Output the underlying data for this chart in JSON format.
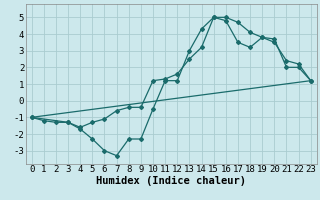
{
  "xlabel": "Humidex (Indice chaleur)",
  "xlim": [
    -0.5,
    23.5
  ],
  "ylim": [
    -3.8,
    5.8
  ],
  "xticks": [
    0,
    1,
    2,
    3,
    4,
    5,
    6,
    7,
    8,
    9,
    10,
    11,
    12,
    13,
    14,
    15,
    16,
    17,
    18,
    19,
    20,
    21,
    22,
    23
  ],
  "yticks": [
    -3,
    -2,
    -1,
    0,
    1,
    2,
    3,
    4,
    5
  ],
  "bg_color": "#cce8ec",
  "grid_color": "#aaccd0",
  "line_color": "#1a6b6b",
  "line1_x": [
    0,
    1,
    2,
    3,
    4,
    5,
    6,
    7,
    8,
    9,
    10,
    11,
    12,
    13,
    14,
    15,
    16,
    17,
    18,
    19,
    20,
    21,
    22,
    23
  ],
  "line1_y": [
    -1.0,
    -1.2,
    -1.3,
    -1.3,
    -1.7,
    -2.3,
    -3.0,
    -3.3,
    -2.3,
    -2.3,
    -0.5,
    1.2,
    1.2,
    3.0,
    4.3,
    5.0,
    5.0,
    4.7,
    4.1,
    3.8,
    3.7,
    2.0,
    2.0,
    1.2
  ],
  "line2_x": [
    0,
    3,
    4,
    5,
    6,
    7,
    8,
    9,
    10,
    11,
    12,
    13,
    14,
    15,
    16,
    17,
    18,
    19,
    20,
    21,
    22,
    23
  ],
  "line2_y": [
    -1.0,
    -1.3,
    -1.6,
    -1.3,
    -1.1,
    -0.6,
    -0.4,
    -0.4,
    1.2,
    1.3,
    1.6,
    2.5,
    3.2,
    5.0,
    4.8,
    3.5,
    3.2,
    3.8,
    3.5,
    2.4,
    2.2,
    1.2
  ],
  "line3_x": [
    0,
    23
  ],
  "line3_y": [
    -1.0,
    1.2
  ],
  "tick_font_size": 6.5,
  "xlabel_font_size": 7.5
}
